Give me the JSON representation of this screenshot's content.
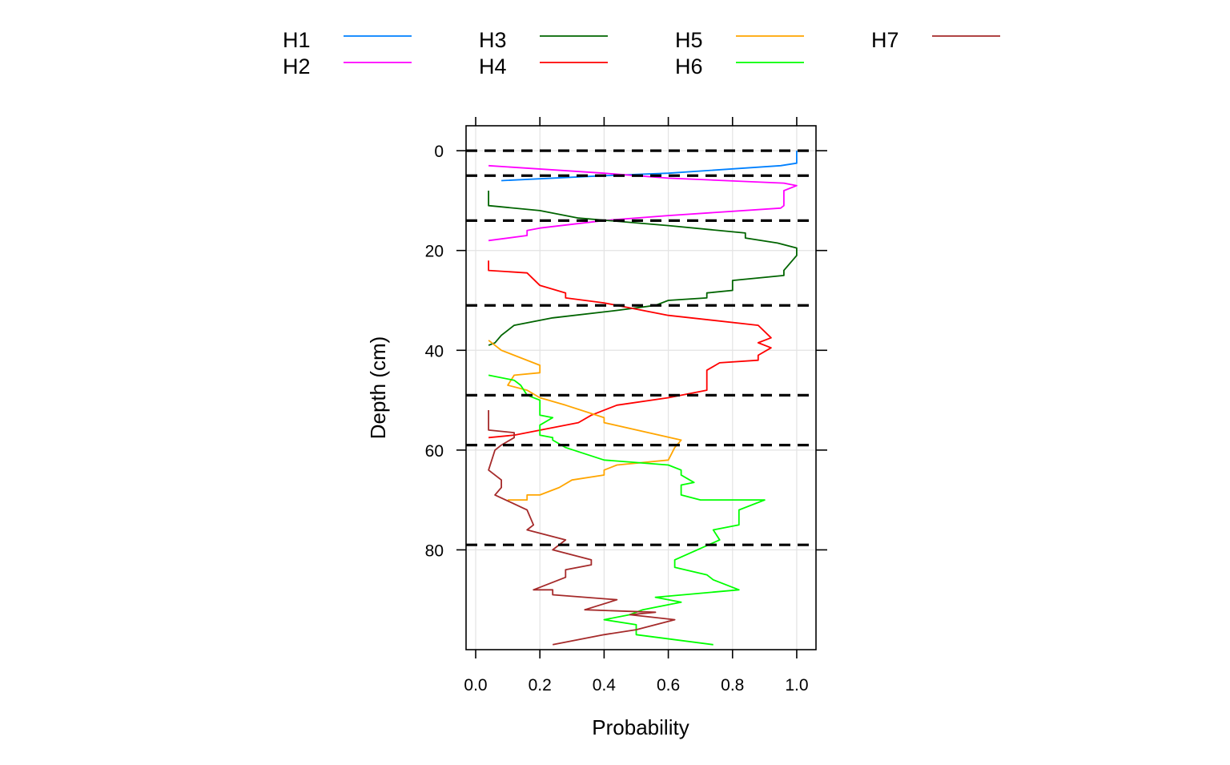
{
  "chart_data": {
    "type": "line",
    "xlabel": "Probability",
    "ylabel": "Depth (cm)",
    "xlim": [
      -0.03,
      1.06
    ],
    "ylim": [
      -5,
      100
    ],
    "y_reversed": true,
    "grid": true,
    "x_ticks": [
      0,
      0.2,
      0.4,
      0.6,
      0.8,
      1
    ],
    "x_tick_labels": [
      "0.0",
      "0.2",
      "0.4",
      "0.6",
      "0.8",
      "1.0"
    ],
    "y_ticks": [
      0,
      20,
      40,
      60,
      80
    ],
    "y_tick_labels": [
      "0",
      "20",
      "40",
      "60",
      "80"
    ],
    "legend_position": "top",
    "horizon_boundaries": [
      0,
      5,
      14,
      31,
      49,
      59,
      79
    ],
    "boundary_color": "#000000",
    "series": [
      {
        "name": "H1",
        "color": "#0080ff",
        "x": [
          1.0,
          1.0,
          0.95,
          0.6,
          0.4,
          0.08
        ],
        "y": [
          0,
          2.5,
          3,
          4.5,
          5,
          6
        ]
      },
      {
        "name": "H2",
        "color": "#ff00ff",
        "x": [
          0.04,
          0.4,
          0.6,
          0.96,
          1.0,
          0.96,
          0.96,
          0.95,
          0.6,
          0.4,
          0.2,
          0.16,
          0.16,
          0.04
        ],
        "y": [
          3,
          4.5,
          5.5,
          6.5,
          7,
          8,
          11,
          11.5,
          13,
          14,
          15.5,
          16,
          17,
          18
        ]
      },
      {
        "name": "H3",
        "color": "#006400",
        "x": [
          0.04,
          0.04,
          0.2,
          0.32,
          0.6,
          0.84,
          0.84,
          0.94,
          1.0,
          1.0,
          0.96,
          0.96,
          0.8,
          0.8,
          0.72,
          0.72,
          0.6,
          0.56,
          0.44,
          0.24,
          0.12,
          0.08,
          0.06,
          0.04
        ],
        "y": [
          8,
          11,
          12,
          13.5,
          15,
          16.5,
          17.5,
          18.5,
          19.5,
          21,
          24,
          25,
          26,
          28,
          28.5,
          29.5,
          30,
          31,
          32,
          33.5,
          35,
          37,
          38.5,
          39
        ]
      },
      {
        "name": "H4",
        "color": "#ff0000",
        "x": [
          0.04,
          0.04,
          0.16,
          0.2,
          0.28,
          0.28,
          0.4,
          0.6,
          0.88,
          0.92,
          0.88,
          0.92,
          0.88,
          0.88,
          0.76,
          0.72,
          0.72,
          0.6,
          0.44,
          0.36,
          0.32,
          0.12,
          0.04
        ],
        "y": [
          22,
          24,
          24.5,
          27,
          28.5,
          29.5,
          30.5,
          33,
          35,
          37.5,
          38.5,
          39.5,
          41,
          42,
          42.5,
          44,
          48,
          49.5,
          51,
          53,
          54.5,
          57,
          57.5
        ]
      },
      {
        "name": "H5",
        "color": "#ffa500",
        "x": [
          0.04,
          0.08,
          0.2,
          0.2,
          0.12,
          0.1,
          0.16,
          0.2,
          0.28,
          0.4,
          0.4,
          0.64,
          0.62,
          0.6,
          0.44,
          0.4,
          0.4,
          0.3,
          0.26,
          0.2,
          0.16,
          0.16,
          0.1
        ],
        "y": [
          38,
          40,
          43,
          44.5,
          45,
          47,
          48,
          49.5,
          51,
          53.5,
          54.5,
          58,
          59.5,
          62,
          63,
          64,
          65,
          66,
          67.5,
          69,
          69,
          70,
          70
        ]
      },
      {
        "name": "H6",
        "color": "#00ff00",
        "x": [
          0.04,
          0.12,
          0.14,
          0.16,
          0.2,
          0.2,
          0.24,
          0.2,
          0.2,
          0.24,
          0.24,
          0.28,
          0.4,
          0.5,
          0.6,
          0.64,
          0.64,
          0.68,
          0.64,
          0.64,
          0.7,
          0.9,
          0.82,
          0.82,
          0.74,
          0.76,
          0.62,
          0.62,
          0.72,
          0.74,
          0.82,
          0.56,
          0.64,
          0.52,
          0.48,
          0.4,
          0.5,
          0.5,
          0.74
        ],
        "y": [
          45,
          46,
          47,
          49,
          50,
          53,
          53.5,
          55,
          57,
          57.5,
          58,
          59.5,
          62,
          62.5,
          63,
          64,
          65,
          66.5,
          67,
          69,
          70,
          70,
          72,
          75,
          76,
          78,
          82,
          83.5,
          85,
          86,
          88,
          89.5,
          90.5,
          92,
          93,
          94,
          95,
          97,
          99
        ]
      },
      {
        "name": "H7",
        "color": "#a52a2a",
        "x": [
          0.04,
          0.04,
          0.12,
          0.12,
          0.08,
          0.06,
          0.04,
          0.08,
          0.08,
          0.06,
          0.16,
          0.18,
          0.16,
          0.28,
          0.24,
          0.36,
          0.36,
          0.28,
          0.28,
          0.18,
          0.24,
          0.24,
          0.44,
          0.34,
          0.56,
          0.48,
          0.62,
          0.5,
          0.4,
          0.24
        ],
        "y": [
          52,
          56,
          56.5,
          57.5,
          59,
          60,
          64,
          66,
          67.5,
          69,
          72,
          75,
          76,
          78,
          80,
          82,
          83,
          84,
          85.5,
          88,
          88,
          89,
          90,
          92,
          92.5,
          93,
          94,
          96,
          97,
          99
        ]
      }
    ]
  }
}
